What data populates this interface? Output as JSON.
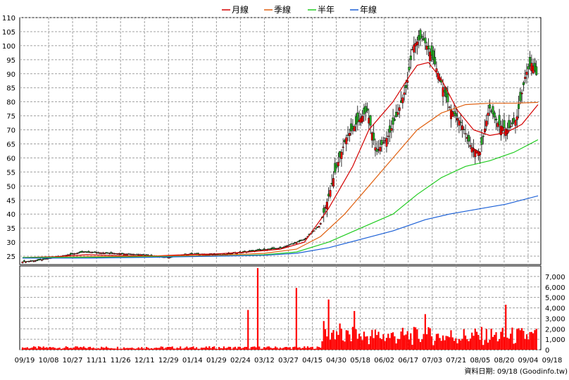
{
  "chart_data": {
    "type": "candlestick",
    "legend": [
      {
        "label": "月線",
        "color": "#d40000"
      },
      {
        "label": "季線",
        "color": "#e06010"
      },
      {
        "label": "半年",
        "color": "#22cc22"
      },
      {
        "label": "年線",
        "color": "#1a5fd6"
      }
    ],
    "price_axis": {
      "min": 22,
      "max": 110,
      "ticks": [
        25,
        30,
        35,
        40,
        45,
        50,
        55,
        60,
        65,
        70,
        75,
        80,
        85,
        90,
        95,
        100,
        105,
        110
      ]
    },
    "volume_axis": {
      "min": 0,
      "max": 8000,
      "ticks": [
        0,
        1000,
        2000,
        3000,
        4000,
        5000,
        6000,
        7000
      ],
      "tick_labels": [
        "0",
        "1,000",
        "2,000",
        "3,000",
        "4,000",
        "5,000",
        "6,000",
        "7,000"
      ]
    },
    "x_ticks": [
      "09/19",
      "10/08",
      "10/27",
      "11/11",
      "11/26",
      "12/11",
      "12/29",
      "01/14",
      "01/29",
      "02/24",
      "03/12",
      "03/27",
      "04/15",
      "04/30",
      "05/18",
      "06/02",
      "06/17",
      "07/03",
      "07/21",
      "08/05",
      "08/20",
      "09/04",
      "09/18"
    ],
    "source_note": "資料日期: 09/18 (Goodinfo.tw)",
    "colors": {
      "up": "#ee0000",
      "down": "#22aa22",
      "grid": "#a0a0a0",
      "volume": "#ff0000"
    },
    "ma_lines": {
      "月線": [
        [
          0,
          24.5
        ],
        [
          20,
          24.8
        ],
        [
          40,
          25.5
        ],
        [
          60,
          25.2
        ],
        [
          80,
          25.0
        ],
        [
          100,
          25.5
        ],
        [
          120,
          25.8
        ],
        [
          140,
          26.5
        ],
        [
          160,
          27.5
        ],
        [
          175,
          30
        ],
        [
          190,
          42
        ],
        [
          205,
          57
        ],
        [
          215,
          70
        ],
        [
          230,
          80
        ],
        [
          240,
          89
        ],
        [
          245,
          93
        ],
        [
          252,
          94
        ],
        [
          260,
          88
        ],
        [
          270,
          77
        ],
        [
          280,
          70
        ],
        [
          290,
          68
        ],
        [
          300,
          69
        ],
        [
          310,
          72
        ],
        [
          320,
          79
        ]
      ],
      "季線": [
        [
          0,
          24.4
        ],
        [
          40,
          24.8
        ],
        [
          80,
          25.0
        ],
        [
          120,
          25.3
        ],
        [
          150,
          26.0
        ],
        [
          170,
          27.5
        ],
        [
          185,
          32
        ],
        [
          200,
          40
        ],
        [
          215,
          50
        ],
        [
          230,
          60
        ],
        [
          245,
          70
        ],
        [
          260,
          76
        ],
        [
          275,
          79
        ],
        [
          290,
          79.5
        ],
        [
          305,
          79.5
        ],
        [
          320,
          79.8
        ]
      ],
      "半年": [
        [
          0,
          24.5
        ],
        [
          40,
          24.6
        ],
        [
          80,
          24.8
        ],
        [
          120,
          25.0
        ],
        [
          150,
          25.5
        ],
        [
          170,
          26.5
        ],
        [
          190,
          30
        ],
        [
          210,
          35
        ],
        [
          230,
          40
        ],
        [
          245,
          47
        ],
        [
          260,
          53
        ],
        [
          275,
          57
        ],
        [
          290,
          59
        ],
        [
          305,
          62
        ],
        [
          320,
          66.5
        ]
      ],
      "年線": [
        [
          0,
          24.3
        ],
        [
          40,
          24.3
        ],
        [
          80,
          24.6
        ],
        [
          120,
          25.0
        ],
        [
          150,
          25.3
        ],
        [
          170,
          26
        ],
        [
          190,
          28
        ],
        [
          210,
          31
        ],
        [
          230,
          34
        ],
        [
          250,
          38
        ],
        [
          265,
          40
        ],
        [
          280,
          41.5
        ],
        [
          300,
          43.5
        ],
        [
          320,
          46.5
        ]
      ]
    }
  }
}
